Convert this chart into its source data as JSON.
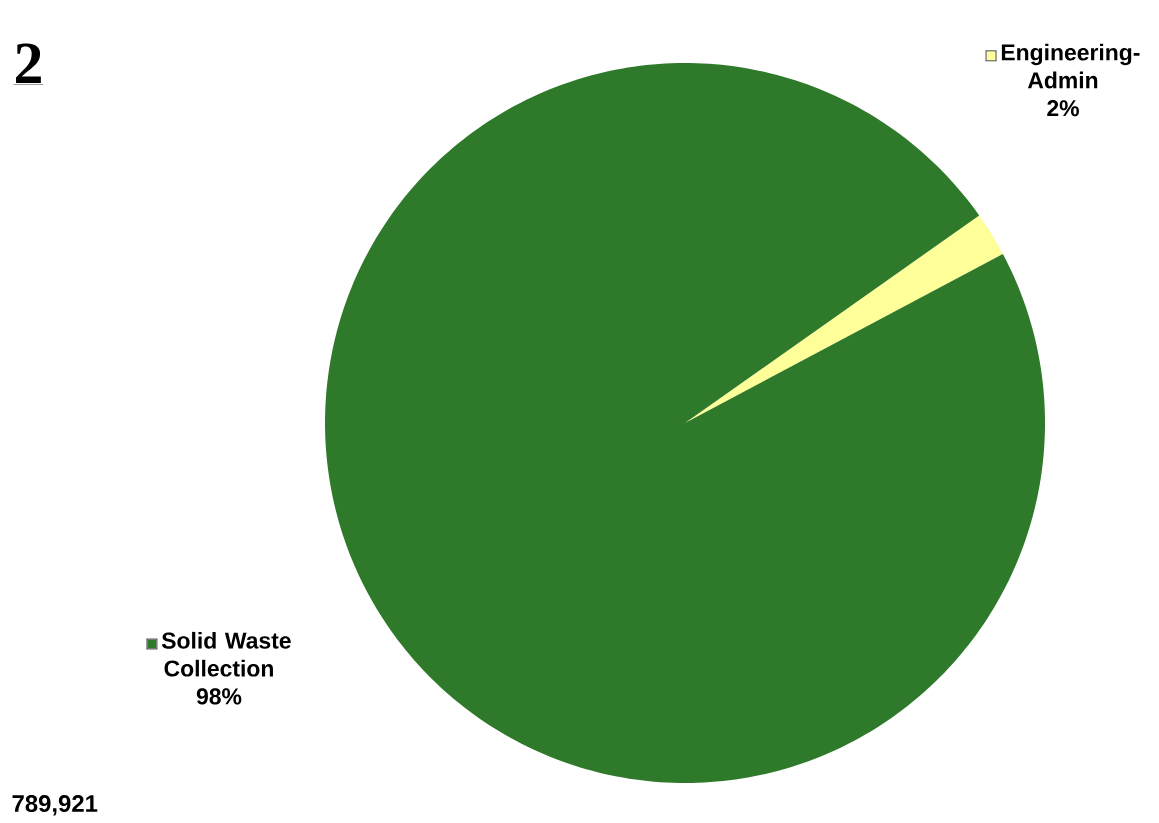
{
  "chart_data": {
    "type": "pie",
    "title": "2",
    "categories": [
      "Solid Waste Collection",
      "Engineering-Admin"
    ],
    "values": [
      98,
      2
    ],
    "value_labels": [
      "98%",
      "2%"
    ],
    "colors": [
      "#2f7a2a",
      "#ffff99"
    ],
    "annotations": [
      "789,921"
    ],
    "legend": "left"
  }
}
